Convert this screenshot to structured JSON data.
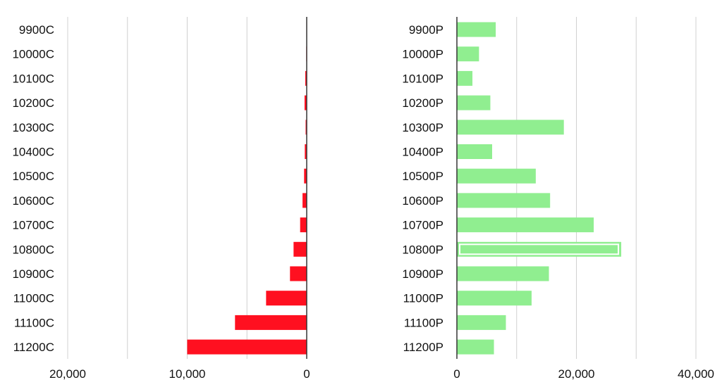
{
  "chart_data": [
    {
      "type": "bar",
      "orientation": "horizontal",
      "direction": "negative",
      "categories": [
        "9900C",
        "10000C",
        "10100C",
        "10200C",
        "10300C",
        "10400C",
        "10500C",
        "10600C",
        "10700C",
        "10800C",
        "10900C",
        "11000C",
        "11100C",
        "11200C"
      ],
      "values": [
        30,
        40,
        120,
        180,
        90,
        160,
        220,
        350,
        550,
        1100,
        1400,
        3400,
        6000,
        10000
      ],
      "xlim": [
        0,
        20000
      ],
      "ticks": [
        20000,
        10000,
        0
      ],
      "tick_labels": [
        "20,000",
        "10,000",
        "0"
      ],
      "color": "#ff1020",
      "grid": true
    },
    {
      "type": "bar",
      "orientation": "horizontal",
      "direction": "positive",
      "categories": [
        "9900P",
        "10000P",
        "10100P",
        "10200P",
        "10300P",
        "10400P",
        "10500P",
        "10600P",
        "10700P",
        "10800P",
        "10900P",
        "11000P",
        "11100P",
        "11200P"
      ],
      "values": [
        6500,
        3700,
        2600,
        5600,
        17900,
        5900,
        13200,
        15600,
        22900,
        27500,
        15400,
        12500,
        8200,
        6200
      ],
      "xlim": [
        0,
        40000
      ],
      "ticks": [
        0,
        20000,
        40000
      ],
      "tick_labels": [
        "0",
        "20,000",
        "40,000"
      ],
      "color": "#90ee90",
      "highlight_category": "10800P",
      "grid": true
    }
  ]
}
